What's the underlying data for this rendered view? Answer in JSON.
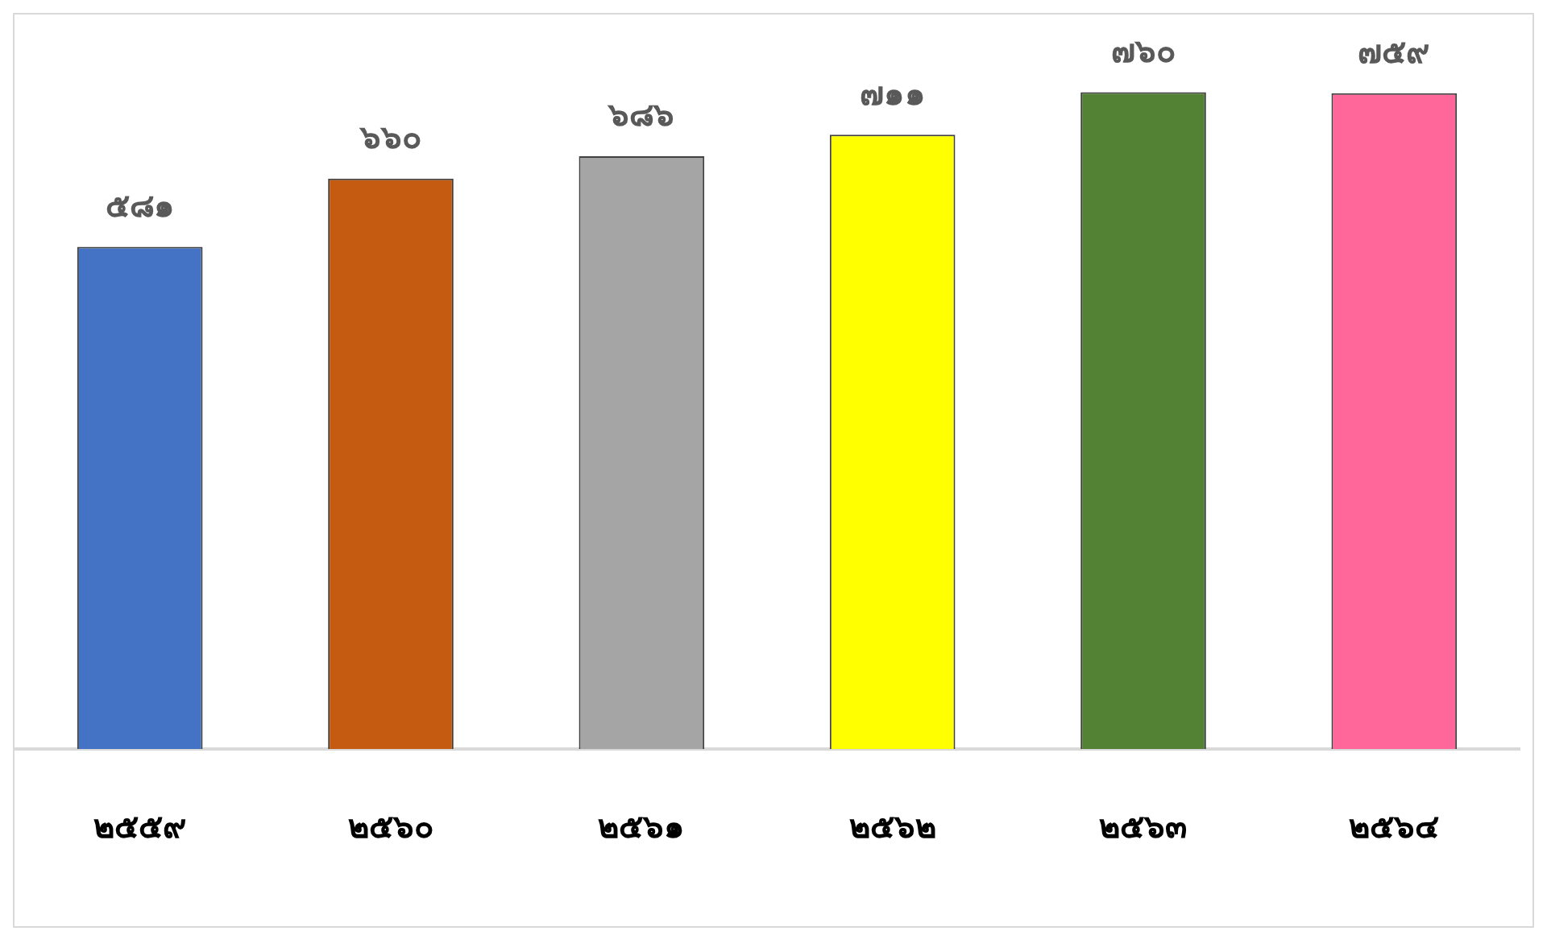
{
  "chart_data": {
    "type": "bar",
    "categories": [
      "๒๕๕๙",
      "๒๕๖๐",
      "๒๕๖๑",
      "๒๕๖๒",
      "๒๕๖๓",
      "๒๕๖๔"
    ],
    "values": [
      581,
      660,
      686,
      711,
      760,
      759
    ],
    "colors": [
      "#4472c4",
      "#c55a11",
      "#a5a5a5",
      "#ffff00",
      "#548235",
      "#ff6699"
    ],
    "value_labels": [
      "๕๘๑",
      "๖๖๐",
      "๖๘๖",
      "๗๑๑",
      "๗๖๐",
      "๗๕๙"
    ],
    "ylim": [
      0,
      850
    ],
    "tick_labels": "x",
    "grid": false,
    "legend": false
  }
}
